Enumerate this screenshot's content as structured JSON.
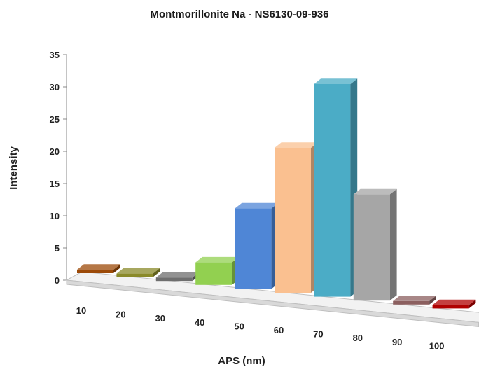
{
  "chart_data": {
    "type": "bar",
    "title": "Montmorillonite Na - NS6130-09-936",
    "xlabel": "APS (nm)",
    "ylabel": "Intensity",
    "ylim": [
      0,
      35
    ],
    "yticks": [
      0,
      5,
      10,
      15,
      20,
      25,
      30,
      35
    ],
    "categories": [
      "10",
      "20",
      "30",
      "40",
      "50",
      "60",
      "70",
      "80",
      "90",
      "100"
    ],
    "values": [
      0,
      0,
      0,
      3.5,
      12.5,
      22.5,
      33,
      16.5,
      0,
      0
    ],
    "colors": [
      "#9c4a08",
      "#8a8a2a",
      "#6e6e6e",
      "#92d050",
      "#4f86d6",
      "#fac090",
      "#4bacc6",
      "#a6a6a6",
      "#8b5f5f",
      "#b00000"
    ],
    "style": "3d-column",
    "grid": false,
    "legend": "none"
  }
}
